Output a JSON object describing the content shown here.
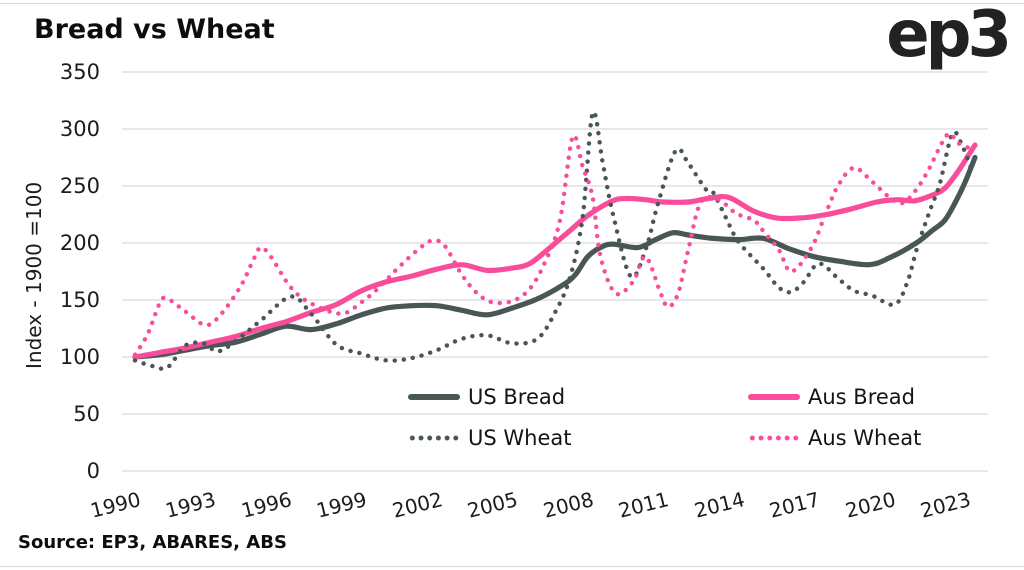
{
  "header": {
    "title": "Bread vs Wheat",
    "logo": "ep3"
  },
  "footer": {
    "source": "Source: EP3, ABARES, ABS"
  },
  "colors": {
    "us_line": "#485655",
    "aus_line": "#f94d9c",
    "grid": "#d9d9d9",
    "text": "#1c1c1c"
  },
  "chart_data": {
    "type": "line",
    "title": "Bread vs Wheat",
    "xlabel": "",
    "ylabel": "Index - 1900 =100",
    "ylim": [
      0,
      350
    ],
    "yticks": [
      0,
      50,
      100,
      150,
      200,
      250,
      300,
      350
    ],
    "xticks": [
      1990,
      1993,
      1996,
      1999,
      2002,
      2005,
      2008,
      2011,
      2014,
      2017,
      2020,
      2023
    ],
    "xlim": [
      1989.5,
      2023.9
    ],
    "grid": "horizontal",
    "legend_position": "inside-bottom",
    "series": [
      {
        "name": "US Bread",
        "color_key": "us_line",
        "style": "solid",
        "points": [
          [
            1990,
            100
          ],
          [
            1991,
            102
          ],
          [
            1992,
            106
          ],
          [
            1993,
            110
          ],
          [
            1994,
            113
          ],
          [
            1995,
            120
          ],
          [
            1996,
            127
          ],
          [
            1997,
            124
          ],
          [
            1998,
            129
          ],
          [
            1999,
            137
          ],
          [
            2000,
            143
          ],
          [
            2001,
            145
          ],
          [
            2002,
            145
          ],
          [
            2003,
            141
          ],
          [
            2004,
            137
          ],
          [
            2005,
            143
          ],
          [
            2006,
            151
          ],
          [
            2007,
            163
          ],
          [
            2007.5,
            172
          ],
          [
            2008,
            188
          ],
          [
            2008.5,
            196
          ],
          [
            2009,
            199
          ],
          [
            2010,
            196
          ],
          [
            2010.7,
            203
          ],
          [
            2011.4,
            209
          ],
          [
            2012,
            207
          ],
          [
            2013,
            204
          ],
          [
            2014,
            203
          ],
          [
            2015,
            204
          ],
          [
            2016,
            195
          ],
          [
            2017,
            188
          ],
          [
            2018,
            184
          ],
          [
            2019.2,
            181
          ],
          [
            2020,
            187
          ],
          [
            2021,
            199
          ],
          [
            2021.7,
            211
          ],
          [
            2022.2,
            220
          ],
          [
            2022.6,
            235
          ],
          [
            2023,
            253
          ],
          [
            2023.4,
            275
          ]
        ]
      },
      {
        "name": "Aus Bread",
        "color_key": "aus_line",
        "style": "solid",
        "points": [
          [
            1990,
            100
          ],
          [
            1991,
            104
          ],
          [
            1992,
            108
          ],
          [
            1993,
            113
          ],
          [
            1994,
            118
          ],
          [
            1995,
            125
          ],
          [
            1996,
            131
          ],
          [
            1997,
            139
          ],
          [
            1998,
            146
          ],
          [
            1999,
            158
          ],
          [
            2000,
            166
          ],
          [
            2001,
            171
          ],
          [
            2002,
            177
          ],
          [
            2003,
            181
          ],
          [
            2004,
            176
          ],
          [
            2005,
            178
          ],
          [
            2005.7,
            182
          ],
          [
            2006.5,
            196
          ],
          [
            2007.3,
            211
          ],
          [
            2008,
            224
          ],
          [
            2009,
            237
          ],
          [
            2009.6,
            239
          ],
          [
            2010.3,
            238
          ],
          [
            2011,
            236
          ],
          [
            2012,
            236
          ],
          [
            2012.8,
            239
          ],
          [
            2013.6,
            240
          ],
          [
            2014.6,
            228
          ],
          [
            2015.5,
            222
          ],
          [
            2016.5,
            222
          ],
          [
            2017.5,
            225
          ],
          [
            2018.5,
            230
          ],
          [
            2019.5,
            236
          ],
          [
            2020.3,
            238
          ],
          [
            2021,
            237
          ],
          [
            2021.7,
            242
          ],
          [
            2022.2,
            248
          ],
          [
            2022.7,
            262
          ],
          [
            2023,
            272
          ],
          [
            2023.4,
            286
          ]
        ]
      },
      {
        "name": "US Wheat",
        "color_key": "us_line",
        "style": "dotted",
        "points": [
          [
            1990,
            97
          ],
          [
            1990.7,
            92
          ],
          [
            1991.3,
            91
          ],
          [
            1992,
            110
          ],
          [
            1992.7,
            112
          ],
          [
            1993.3,
            105
          ],
          [
            1994,
            114
          ],
          [
            1995,
            132
          ],
          [
            1996.2,
            153
          ],
          [
            1997,
            138
          ],
          [
            1998,
            111
          ],
          [
            1999,
            103
          ],
          [
            2000,
            97
          ],
          [
            2001,
            99
          ],
          [
            2002,
            106
          ],
          [
            2003,
            116
          ],
          [
            2004,
            119
          ],
          [
            2005,
            112
          ],
          [
            2006,
            116
          ],
          [
            2006.7,
            139
          ],
          [
            2007.3,
            170
          ],
          [
            2007.8,
            223
          ],
          [
            2008.2,
            314
          ],
          [
            2008.6,
            270
          ],
          [
            2009,
            226
          ],
          [
            2009.7,
            171
          ],
          [
            2010.3,
            194
          ],
          [
            2010.8,
            235
          ],
          [
            2011.5,
            281
          ],
          [
            2012,
            270
          ],
          [
            2012.7,
            247
          ],
          [
            2013,
            244
          ],
          [
            2013.5,
            222
          ],
          [
            2014,
            201
          ],
          [
            2015,
            177
          ],
          [
            2015.6,
            161
          ],
          [
            2016.1,
            157
          ],
          [
            2016.6,
            166
          ],
          [
            2017.2,
            182
          ],
          [
            2018,
            168
          ],
          [
            2018.6,
            158
          ],
          [
            2019.3,
            154
          ],
          [
            2020.2,
            146
          ],
          [
            2020.7,
            165
          ],
          [
            2021.1,
            196
          ],
          [
            2021.6,
            228
          ],
          [
            2022,
            252
          ],
          [
            2022.5,
            296
          ],
          [
            2022.9,
            285
          ],
          [
            2023.3,
            262
          ]
        ]
      },
      {
        "name": "Aus Wheat",
        "color_key": "aus_line",
        "style": "dotted",
        "points": [
          [
            1990,
            102
          ],
          [
            1990.5,
            120
          ],
          [
            1991,
            148
          ],
          [
            1991.3,
            151
          ],
          [
            1992,
            140
          ],
          [
            1992.8,
            128
          ],
          [
            1993.4,
            137
          ],
          [
            1994.2,
            162
          ],
          [
            1994.7,
            185
          ],
          [
            1995,
            196
          ],
          [
            1995.4,
            188
          ],
          [
            1996.2,
            161
          ],
          [
            1997,
            147
          ],
          [
            1998.2,
            138
          ],
          [
            1999,
            148
          ],
          [
            1999.7,
            161
          ],
          [
            2000.5,
            179
          ],
          [
            2001.3,
            195
          ],
          [
            2001.8,
            202
          ],
          [
            2002.3,
            198
          ],
          [
            2003,
            172
          ],
          [
            2003.6,
            156
          ],
          [
            2004.2,
            148
          ],
          [
            2005,
            149
          ],
          [
            2005.7,
            160
          ],
          [
            2006.3,
            183
          ],
          [
            2006.9,
            220
          ],
          [
            2007.4,
            293
          ],
          [
            2007.8,
            267
          ],
          [
            2008.2,
            240
          ],
          [
            2008.5,
            189
          ],
          [
            2009.1,
            156
          ],
          [
            2009.8,
            166
          ],
          [
            2010.3,
            188
          ],
          [
            2010.9,
            156
          ],
          [
            2011.2,
            144
          ],
          [
            2011.6,
            156
          ],
          [
            2012,
            194
          ],
          [
            2012.5,
            236
          ],
          [
            2013.2,
            238
          ],
          [
            2013.9,
            226
          ],
          [
            2014.6,
            220
          ],
          [
            2015,
            210
          ],
          [
            2015.6,
            194
          ],
          [
            2016.1,
            175
          ],
          [
            2016.9,
            196
          ],
          [
            2017.5,
            228
          ],
          [
            2018,
            252
          ],
          [
            2018.6,
            266
          ],
          [
            2019.3,
            254
          ],
          [
            2020,
            240
          ],
          [
            2020.5,
            235
          ],
          [
            2021,
            245
          ],
          [
            2021.5,
            262
          ],
          [
            2022.3,
            295
          ],
          [
            2022.7,
            288
          ],
          [
            2023.2,
            283
          ]
        ]
      }
    ]
  }
}
